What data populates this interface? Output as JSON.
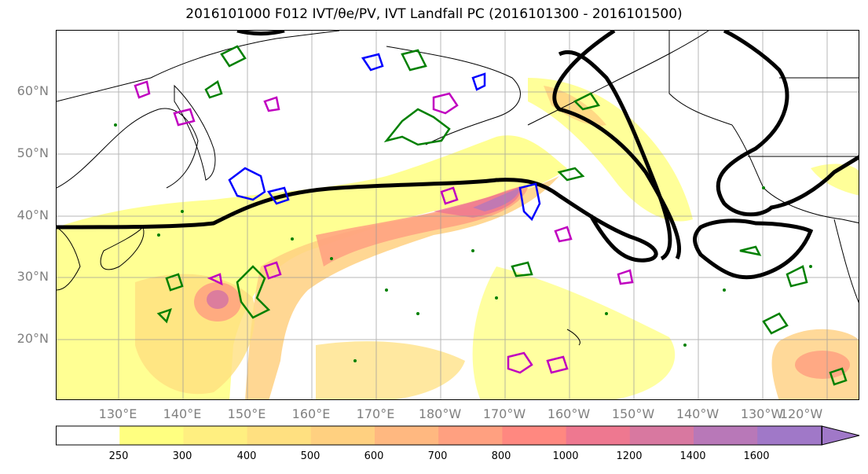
{
  "title": "2016101000 F012 IVT/θe/PV, IVT Landfall PC (2016101300 - 2016101500)",
  "map": {
    "lat_labels": [
      "60°N",
      "50°N",
      "40°N",
      "30°N",
      "20°N"
    ],
    "lon_labels": [
      "130°E",
      "140°E",
      "150°E",
      "160°E",
      "170°E",
      "180°W",
      "170°W",
      "160°W",
      "150°W",
      "140°W",
      "130°W",
      "120°W"
    ],
    "contour_colors": {
      "theta_e_pc": "#000000",
      "pv_positive": "#008000",
      "pv_negative": "#0000ff",
      "pv_extra": "#c000c0"
    },
    "features": [
      "gridlines",
      "coastlines",
      "IVT shading",
      "landfall PC contour"
    ]
  },
  "colorbar": {
    "ticks": [
      "250",
      "300",
      "400",
      "500",
      "600",
      "700",
      "800",
      "1000",
      "1200",
      "1400",
      "1600"
    ],
    "colors": [
      "#ffffff",
      "#ffff80",
      "#ffef80",
      "#ffe080",
      "#ffd080",
      "#ffb880",
      "#ffa080",
      "#ff8880",
      "#ee7890",
      "#d878a0",
      "#b878b8",
      "#a078c8"
    ]
  }
}
